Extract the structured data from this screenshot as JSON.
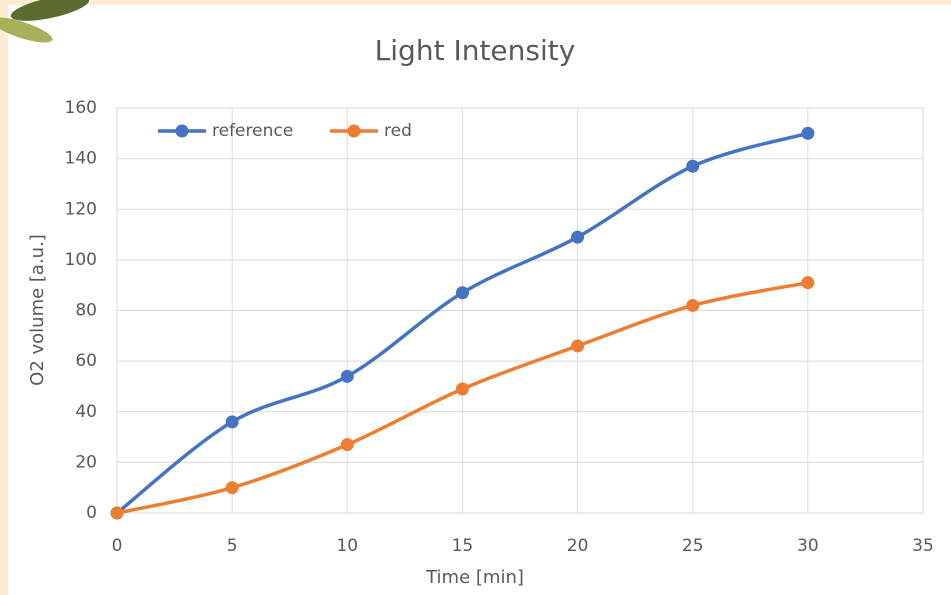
{
  "chart_data": {
    "type": "line",
    "title": "Light Intensity",
    "x_label": "Time [min]",
    "y_label": "O2 volume [a.u.]",
    "x": [
      0,
      5,
      10,
      15,
      20,
      25,
      30
    ],
    "series": [
      {
        "name": "reference",
        "color": "#4472c4",
        "values": [
          0,
          36,
          54,
          87,
          109,
          137,
          150
        ]
      },
      {
        "name": "red",
        "color": "#ed7d31",
        "values": [
          0,
          10,
          27,
          49,
          66,
          82,
          91
        ]
      }
    ],
    "xlim": [
      0,
      35
    ],
    "xticks": [
      0,
      5,
      10,
      15,
      20,
      25,
      30,
      35
    ],
    "ylim": [
      0,
      160
    ],
    "yticks": [
      0,
      20,
      40,
      60,
      80,
      100,
      120,
      140,
      160
    ],
    "grid": true,
    "legend": "top-left",
    "smooth": true
  }
}
